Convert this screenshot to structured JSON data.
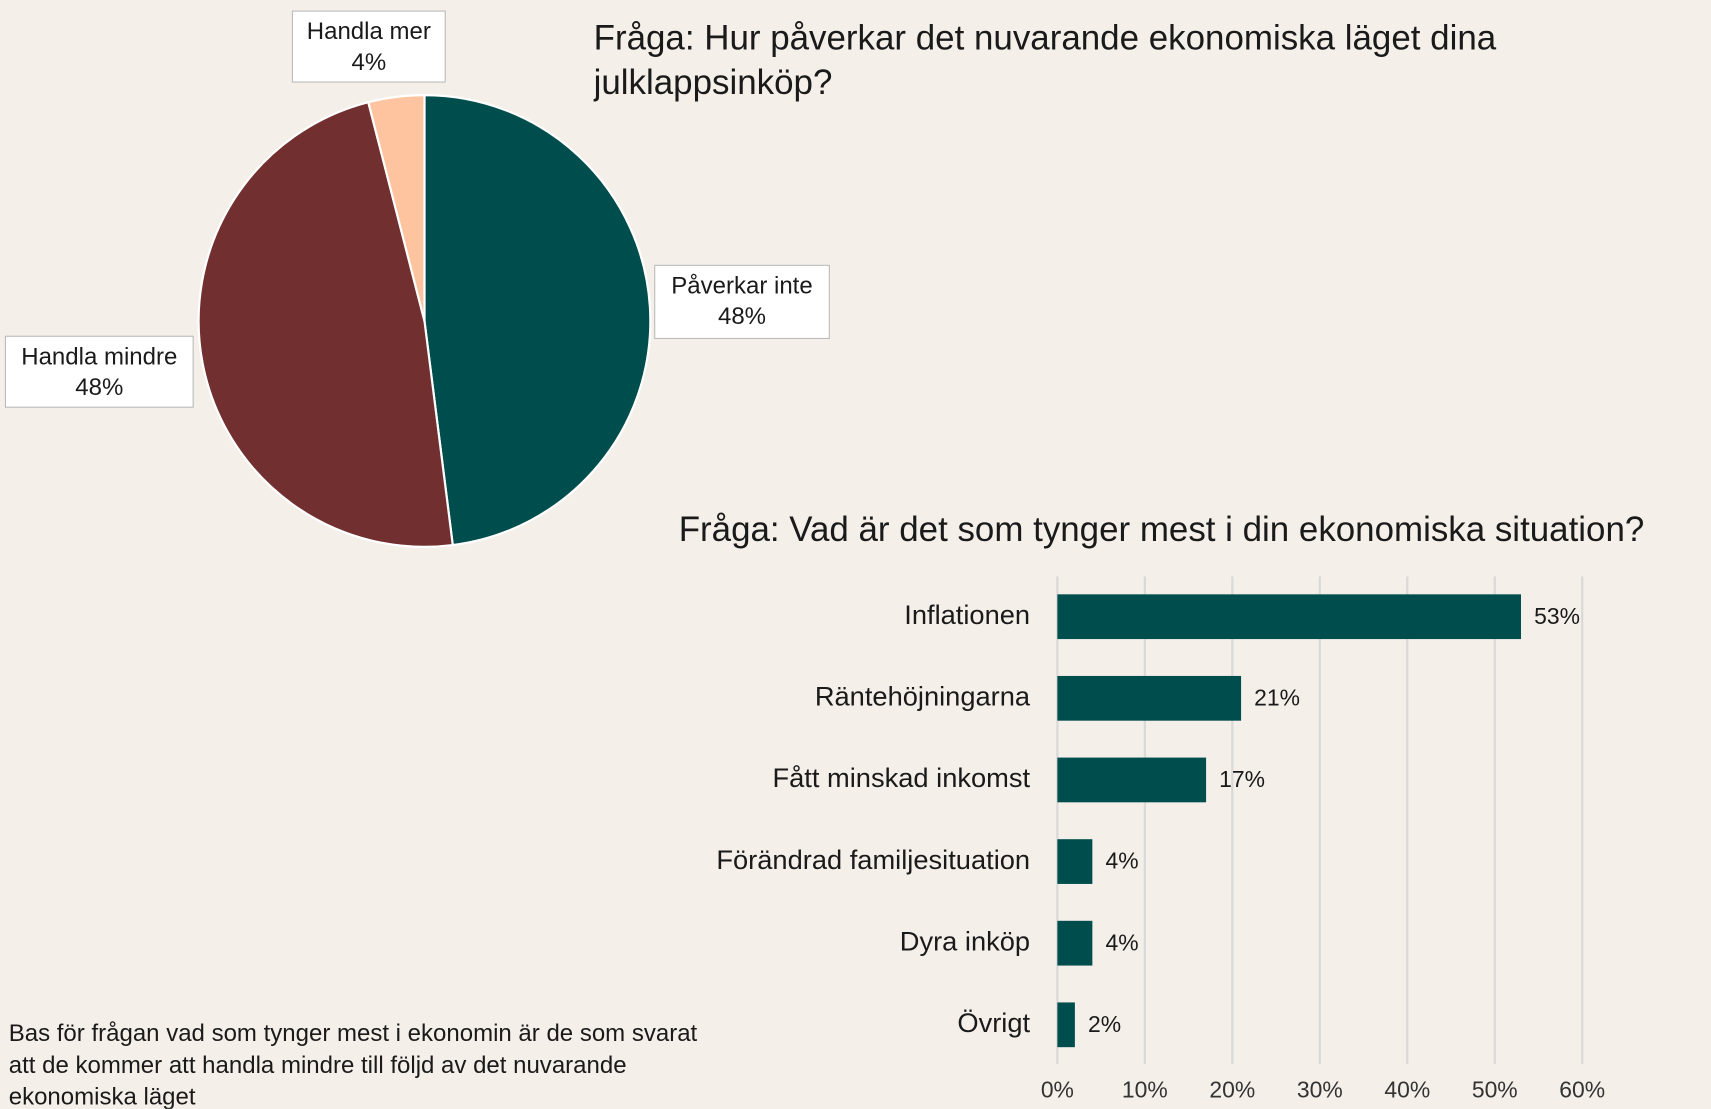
{
  "chart_data": [
    {
      "type": "pie",
      "title": "Fråga: Hur påverkar det nuvarande ekonomiska läget dina julklappsinköp?",
      "categories": [
        "Påverkar inte",
        "Handla mindre",
        "Handla mer"
      ],
      "values": [
        48,
        48,
        4
      ],
      "value_labels": [
        "48%",
        "48%",
        "4%"
      ],
      "colors": [
        "#004d4d",
        "#722f30",
        "#fdc49f"
      ]
    },
    {
      "type": "barh",
      "title": "Fråga: Vad är det som tynger mest i din ekonomiska situation?",
      "categories": [
        "Inflationen",
        "Räntehöjningarna",
        "Fått minskad inkomst",
        "Förändrad familjesituation",
        "Dyra inköp",
        "Övrigt"
      ],
      "values": [
        53,
        21,
        17,
        4,
        4,
        2
      ],
      "value_labels": [
        "53%",
        "21%",
        "17%",
        "4%",
        "4%",
        "2%"
      ],
      "color": "#004d4d",
      "xlim": [
        0,
        60
      ],
      "xticks": [
        {
          "value": 0,
          "label": "0%"
        },
        {
          "value": 10,
          "label": "10%"
        },
        {
          "value": 20,
          "label": "20%"
        },
        {
          "value": 30,
          "label": "30%"
        },
        {
          "value": 40,
          "label": "40%"
        },
        {
          "value": 50,
          "label": "50%"
        },
        {
          "value": 60,
          "label": "60%"
        }
      ],
      "grid": true
    }
  ],
  "footnote": "Bas för frågan vad som tynger mest i ekonomin är de som svarat att de kommer att handla mindre till följd av det nuvarande ekonomiska läget"
}
